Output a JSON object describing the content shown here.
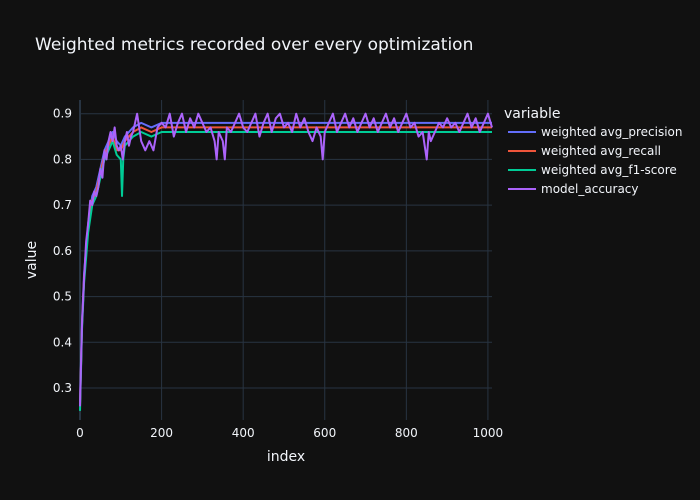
{
  "chart_data": {
    "type": "line",
    "title": "Weighted metrics recorded over every optimization",
    "xlabel": "index",
    "ylabel": "value",
    "xlim": [
      0,
      1010
    ],
    "ylim": [
      0.23,
      0.93
    ],
    "x_ticks": [
      0,
      200,
      400,
      600,
      800,
      1000
    ],
    "y_ticks": [
      0.3,
      0.4,
      0.5,
      0.6,
      0.7,
      0.8,
      0.9
    ],
    "grid": true,
    "legend_title": "variable",
    "legend_position": "right",
    "series": [
      {
        "name": "weighted avg_precision",
        "color": "#636efa",
        "points": [
          [
            0,
            0.27
          ],
          [
            5,
            0.45
          ],
          [
            10,
            0.55
          ],
          [
            20,
            0.66
          ],
          [
            30,
            0.72
          ],
          [
            40,
            0.74
          ],
          [
            50,
            0.78
          ],
          [
            60,
            0.82
          ],
          [
            70,
            0.84
          ],
          [
            80,
            0.86
          ],
          [
            90,
            0.84
          ],
          [
            100,
            0.83
          ],
          [
            110,
            0.85
          ],
          [
            120,
            0.86
          ],
          [
            130,
            0.87
          ],
          [
            150,
            0.88
          ],
          [
            175,
            0.87
          ],
          [
            200,
            0.88
          ],
          [
            250,
            0.88
          ],
          [
            300,
            0.88
          ],
          [
            400,
            0.88
          ],
          [
            500,
            0.88
          ],
          [
            600,
            0.88
          ],
          [
            700,
            0.88
          ],
          [
            800,
            0.88
          ],
          [
            900,
            0.88
          ],
          [
            1010,
            0.88
          ]
        ]
      },
      {
        "name": "weighted avg_recall",
        "color": "#ef553b",
        "points": [
          [
            0,
            0.26
          ],
          [
            5,
            0.44
          ],
          [
            10,
            0.54
          ],
          [
            20,
            0.65
          ],
          [
            30,
            0.71
          ],
          [
            40,
            0.73
          ],
          [
            50,
            0.77
          ],
          [
            60,
            0.81
          ],
          [
            70,
            0.83
          ],
          [
            80,
            0.85
          ],
          [
            90,
            0.82
          ],
          [
            100,
            0.82
          ],
          [
            110,
            0.84
          ],
          [
            120,
            0.85
          ],
          [
            130,
            0.86
          ],
          [
            150,
            0.87
          ],
          [
            175,
            0.86
          ],
          [
            200,
            0.87
          ],
          [
            250,
            0.87
          ],
          [
            300,
            0.87
          ],
          [
            400,
            0.87
          ],
          [
            500,
            0.87
          ],
          [
            600,
            0.87
          ],
          [
            700,
            0.87
          ],
          [
            800,
            0.87
          ],
          [
            900,
            0.87
          ],
          [
            1010,
            0.87
          ]
        ]
      },
      {
        "name": "weighted avg_f1-score",
        "color": "#00cc96",
        "points": [
          [
            0,
            0.25
          ],
          [
            5,
            0.43
          ],
          [
            10,
            0.53
          ],
          [
            20,
            0.64
          ],
          [
            30,
            0.7
          ],
          [
            40,
            0.72
          ],
          [
            50,
            0.76
          ],
          [
            60,
            0.8
          ],
          [
            70,
            0.82
          ],
          [
            80,
            0.84
          ],
          [
            90,
            0.81
          ],
          [
            100,
            0.8
          ],
          [
            103,
            0.72
          ],
          [
            106,
            0.8
          ],
          [
            110,
            0.83
          ],
          [
            120,
            0.84
          ],
          [
            130,
            0.85
          ],
          [
            150,
            0.86
          ],
          [
            175,
            0.85
          ],
          [
            200,
            0.86
          ],
          [
            250,
            0.86
          ],
          [
            300,
            0.86
          ],
          [
            400,
            0.86
          ],
          [
            500,
            0.86
          ],
          [
            600,
            0.86
          ],
          [
            700,
            0.86
          ],
          [
            800,
            0.86
          ],
          [
            900,
            0.86
          ],
          [
            1010,
            0.86
          ]
        ]
      },
      {
        "name": "model_accuracy",
        "color": "#ab63fa",
        "points": [
          [
            0,
            0.26
          ],
          [
            5,
            0.44
          ],
          [
            10,
            0.54
          ],
          [
            15,
            0.62
          ],
          [
            20,
            0.66
          ],
          [
            25,
            0.71
          ],
          [
            30,
            0.7
          ],
          [
            35,
            0.73
          ],
          [
            40,
            0.72
          ],
          [
            45,
            0.74
          ],
          [
            50,
            0.78
          ],
          [
            55,
            0.76
          ],
          [
            60,
            0.82
          ],
          [
            65,
            0.8
          ],
          [
            70,
            0.84
          ],
          [
            75,
            0.86
          ],
          [
            80,
            0.84
          ],
          [
            85,
            0.87
          ],
          [
            90,
            0.83
          ],
          [
            95,
            0.82
          ],
          [
            100,
            0.83
          ],
          [
            105,
            0.8
          ],
          [
            110,
            0.84
          ],
          [
            115,
            0.86
          ],
          [
            120,
            0.83
          ],
          [
            125,
            0.85
          ],
          [
            130,
            0.86
          ],
          [
            135,
            0.88
          ],
          [
            140,
            0.9
          ],
          [
            150,
            0.84
          ],
          [
            160,
            0.82
          ],
          [
            170,
            0.84
          ],
          [
            180,
            0.82
          ],
          [
            190,
            0.87
          ],
          [
            200,
            0.88
          ],
          [
            210,
            0.87
          ],
          [
            220,
            0.9
          ],
          [
            230,
            0.85
          ],
          [
            240,
            0.88
          ],
          [
            250,
            0.9
          ],
          [
            260,
            0.86
          ],
          [
            270,
            0.89
          ],
          [
            280,
            0.87
          ],
          [
            290,
            0.9
          ],
          [
            300,
            0.88
          ],
          [
            310,
            0.86
          ],
          [
            320,
            0.87
          ],
          [
            330,
            0.84
          ],
          [
            335,
            0.8
          ],
          [
            340,
            0.86
          ],
          [
            350,
            0.84
          ],
          [
            355,
            0.8
          ],
          [
            360,
            0.87
          ],
          [
            370,
            0.86
          ],
          [
            380,
            0.88
          ],
          [
            390,
            0.9
          ],
          [
            400,
            0.87
          ],
          [
            410,
            0.86
          ],
          [
            420,
            0.88
          ],
          [
            430,
            0.9
          ],
          [
            440,
            0.85
          ],
          [
            450,
            0.88
          ],
          [
            460,
            0.9
          ],
          [
            470,
            0.86
          ],
          [
            480,
            0.89
          ],
          [
            490,
            0.9
          ],
          [
            500,
            0.87
          ],
          [
            510,
            0.88
          ],
          [
            520,
            0.86
          ],
          [
            530,
            0.9
          ],
          [
            540,
            0.87
          ],
          [
            550,
            0.89
          ],
          [
            560,
            0.86
          ],
          [
            570,
            0.84
          ],
          [
            580,
            0.87
          ],
          [
            590,
            0.85
          ],
          [
            595,
            0.8
          ],
          [
            600,
            0.86
          ],
          [
            610,
            0.88
          ],
          [
            620,
            0.9
          ],
          [
            630,
            0.86
          ],
          [
            640,
            0.88
          ],
          [
            650,
            0.9
          ],
          [
            660,
            0.87
          ],
          [
            670,
            0.89
          ],
          [
            680,
            0.86
          ],
          [
            690,
            0.88
          ],
          [
            700,
            0.9
          ],
          [
            710,
            0.87
          ],
          [
            720,
            0.89
          ],
          [
            730,
            0.86
          ],
          [
            740,
            0.88
          ],
          [
            750,
            0.9
          ],
          [
            760,
            0.87
          ],
          [
            770,
            0.89
          ],
          [
            780,
            0.86
          ],
          [
            790,
            0.88
          ],
          [
            800,
            0.9
          ],
          [
            810,
            0.87
          ],
          [
            820,
            0.88
          ],
          [
            830,
            0.85
          ],
          [
            840,
            0.86
          ],
          [
            845,
            0.83
          ],
          [
            850,
            0.8
          ],
          [
            855,
            0.86
          ],
          [
            860,
            0.84
          ],
          [
            870,
            0.86
          ],
          [
            880,
            0.88
          ],
          [
            890,
            0.87
          ],
          [
            900,
            0.89
          ],
          [
            910,
            0.87
          ],
          [
            920,
            0.88
          ],
          [
            930,
            0.86
          ],
          [
            940,
            0.88
          ],
          [
            950,
            0.9
          ],
          [
            960,
            0.87
          ],
          [
            970,
            0.89
          ],
          [
            980,
            0.86
          ],
          [
            990,
            0.88
          ],
          [
            1000,
            0.9
          ],
          [
            1010,
            0.87
          ]
        ]
      }
    ]
  }
}
